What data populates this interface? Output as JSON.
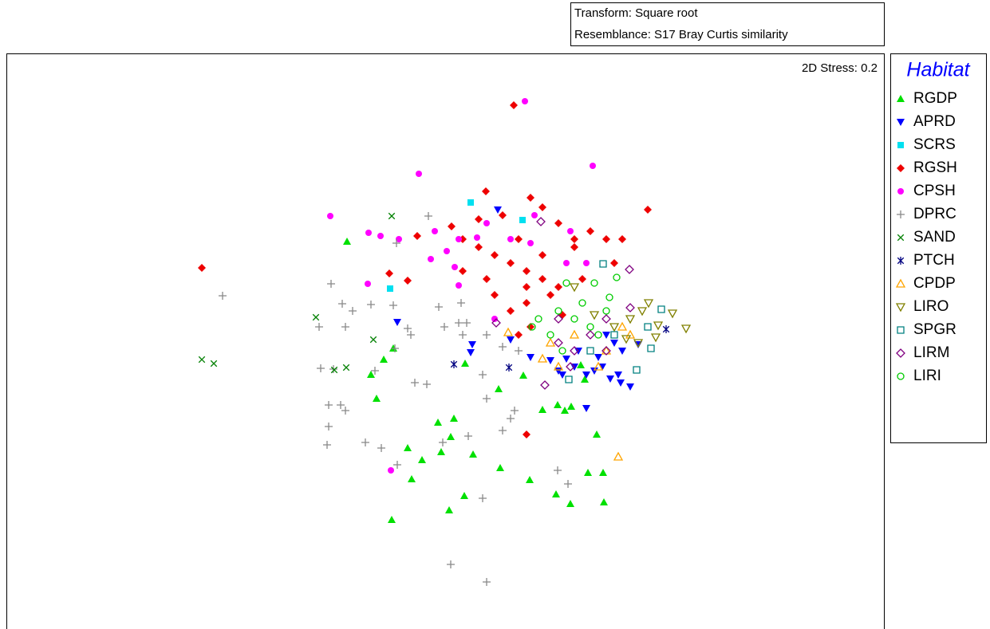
{
  "chart_data": {
    "type": "scatter",
    "header": [
      "Transform: Square root",
      "Resemblance: S17 Bray Curtis similarity"
    ],
    "annotation": "2D Stress: 0.2",
    "legend_title": "Habitat",
    "xlim": [
      0,
      110
    ],
    "ylim": [
      0,
      72.2
    ],
    "series": [
      {
        "name": "RGDP",
        "color": "#00e000",
        "marker": "triangle-up",
        "x": [
          42.7,
          47.3,
          48.5,
          45.7,
          46.4,
          54.1,
          56.1,
          55.7,
          50.3,
          52.1,
          54.5,
          58.5,
          61.9,
          50.8,
          57.4,
          55.5,
          48.3,
          65.6,
          70.7,
          68.9,
          72.9,
          74.8,
          74.9,
          74,
          67.2,
          69.1,
          70.8,
          70,
          61.7,
          57.5,
          64.8,
          72.5,
          72
        ],
        "y": [
          48.6,
          33.8,
          35.2,
          31.9,
          28.9,
          25.9,
          26.4,
          24.1,
          22.7,
          21.2,
          22.2,
          21.9,
          20.2,
          18.8,
          16.7,
          14.9,
          13.7,
          18.7,
          15.7,
          16.9,
          19.6,
          19.6,
          15.9,
          24.4,
          27.5,
          28.1,
          27.9,
          27.4,
          30.1,
          33.3,
          31.8,
          31.3,
          33.1
        ]
      },
      {
        "name": "APRD",
        "color": "#0000ff",
        "marker": "triangle-down",
        "x": [
          61.6,
          49,
          58.4,
          58.2,
          63.2,
          65.7,
          68.2,
          69.2,
          70.2,
          71.2,
          72.7,
          73.7,
          74.7,
          75.7,
          76.7,
          78.2,
          77,
          72.7,
          75.2,
          77.2,
          79.2,
          71.7,
          76.2,
          69.7,
          74.2
        ],
        "y": [
          52.6,
          38.5,
          35.7,
          34.7,
          36.3,
          34.1,
          33.7,
          32.4,
          33.9,
          32.9,
          31.9,
          32.4,
          32.9,
          31.4,
          31.9,
          30.4,
          30.9,
          27.7,
          36.9,
          34.9,
          35.7,
          34.9,
          35.9,
          31.9,
          34.1
        ]
      },
      {
        "name": "SCRS",
        "color": "#00e0f0",
        "marker": "square",
        "x": [
          58.2,
          64.7,
          48.1
        ],
        "y": [
          53.5,
          51.3,
          42.7
        ]
      },
      {
        "name": "RGSH",
        "color": "#ee0000",
        "marker": "diamond",
        "x": [
          24.5,
          63.6,
          60.1,
          51.5,
          55.8,
          57.2,
          59.2,
          62.2,
          65.7,
          67.2,
          69.2,
          71.2,
          73.2,
          75.2,
          77.2,
          80.4,
          48,
          50.3,
          57.2,
          61.2,
          63.2,
          65.2,
          67.2,
          69.2,
          61.2,
          63.2,
          65.2,
          68.2,
          69.7,
          65.7,
          64.2,
          71.2,
          72.2,
          76.2,
          64.2,
          59.2,
          65.2,
          60.2,
          67.2,
          65.2
        ],
        "y": [
          45.3,
          65.7,
          54.9,
          49.3,
          50.5,
          48.9,
          51.4,
          51.9,
          54.1,
          52.9,
          50.9,
          48.9,
          49.9,
          48.9,
          48.9,
          52.6,
          44.6,
          43.7,
          44.9,
          46.9,
          45.9,
          44.9,
          43.9,
          42.9,
          41.9,
          39.9,
          40.9,
          41.9,
          39.4,
          37.9,
          36.9,
          47.9,
          43.9,
          45.9,
          48.9,
          47.9,
          24.4,
          43.9,
          46.9,
          42.9
        ]
      },
      {
        "name": "CPSH",
        "color": "#ff00ff",
        "marker": "circle",
        "x": [
          65,
          73.5,
          51.7,
          40.6,
          45.4,
          46.9,
          49.2,
          53.7,
          55.2,
          56.7,
          53.2,
          56.2,
          56.7,
          45.3,
          48.2,
          63.2,
          65.7,
          70.7,
          72.7,
          70.2,
          61.2,
          66.2,
          59,
          60.2
        ],
        "y": [
          66.2,
          58.1,
          57.1,
          51.8,
          49.7,
          49.3,
          48.9,
          49.9,
          47.4,
          48.9,
          46.4,
          45.4,
          43.1,
          43.3,
          19.9,
          48.9,
          48.4,
          49.9,
          45.9,
          45.9,
          38.9,
          51.9,
          49.1,
          50.9
        ]
      },
      {
        "name": "DPRC",
        "color": "#888888",
        "marker": "plus",
        "x": [
          27.1,
          40.7,
          42.1,
          43.4,
          39.2,
          42.5,
          45.7,
          48.5,
          48.9,
          52.9,
          50.3,
          50.7,
          54.2,
          54.9,
          57,
          56.7,
          48.7,
          46.2,
          39.4,
          41,
          40.4,
          41.9,
          42.5,
          40.4,
          40.2,
          45,
          47,
          49,
          51.2,
          52.7,
          54.7,
          57.9,
          57.7,
          60.2,
          62.2,
          64.2,
          59.7,
          60.2,
          63.7,
          62.2,
          63.2,
          55.7,
          60.2,
          59.7,
          69.1,
          70.4,
          57.2
        ],
        "y": [
          41.8,
          43.3,
          40.8,
          39.9,
          37.9,
          37.9,
          40.7,
          40.6,
          48.4,
          51.8,
          37.7,
          36.9,
          40.4,
          37.9,
          40.9,
          38.4,
          35.2,
          32.4,
          32.7,
          32.6,
          28.1,
          28.1,
          27.4,
          25.4,
          23.1,
          23.4,
          22.7,
          20.6,
          30.9,
          30.7,
          23.4,
          24.2,
          38.4,
          36.9,
          35.4,
          34.9,
          31.9,
          28.9,
          27.4,
          24.9,
          26.4,
          8.1,
          5.9,
          16.4,
          19.9,
          18.2,
          36.9
        ]
      },
      {
        "name": "SAND",
        "color": "#008000",
        "marker": "cross",
        "x": [
          48.3,
          38.8,
          46,
          24.5,
          26,
          41.1,
          42.6
        ],
        "y": [
          51.8,
          39.1,
          36.3,
          33.8,
          33.3,
          32.5,
          32.8
        ]
      },
      {
        "name": "PTCH",
        "color": "#000080",
        "marker": "asterisk",
        "x": [
          56.1,
          63,
          82.7
        ],
        "y": [
          33.2,
          32.8,
          37.6
        ]
      },
      {
        "name": "CPDP",
        "color": "#ffa500",
        "marker": "triangle-up-open",
        "x": [
          62.9,
          76.7,
          68.2,
          71.2,
          75.2,
          77.2,
          69.2,
          74.2,
          78.2,
          67.2
        ],
        "y": [
          37.2,
          21.6,
          35.9,
          36.9,
          34.9,
          37.9,
          32.9,
          32.9,
          36.9,
          33.9
        ]
      },
      {
        "name": "LIRO",
        "color": "#808000",
        "marker": "triangle-down-open",
        "x": [
          85.2,
          83.5,
          80.5,
          81.7,
          81.4,
          79.7,
          78.2,
          76.2,
          73.7,
          71.2,
          77.7,
          79.2
        ],
        "y": [
          37.7,
          39.6,
          40.9,
          38.1,
          36.6,
          39.9,
          38.9,
          37.9,
          39.4,
          42.9,
          36.4,
          35.9
        ]
      },
      {
        "name": "SPGR",
        "color": "#008080",
        "marker": "square-open",
        "x": [
          74.8,
          82.1,
          80.4,
          80.8,
          79,
          70.5,
          73.2,
          76.2
        ],
        "y": [
          45.8,
          40.1,
          37.9,
          35.2,
          32.5,
          31.3,
          34.9,
          36.9
        ]
      },
      {
        "name": "LIRM",
        "color": "#800080",
        "marker": "diamond-open",
        "x": [
          67,
          78.1,
          67.5,
          61.4,
          78.2,
          69.2,
          71.2,
          73.2,
          75.2,
          69.2,
          75.2,
          70.7
        ],
        "y": [
          51.1,
          45.1,
          30.6,
          38.4,
          40.3,
          35.9,
          34.9,
          36.9,
          38.9,
          38.9,
          34.9,
          32.9
        ]
      },
      {
        "name": "LIRI",
        "color": "#00cc00",
        "marker": "circle-open",
        "x": [
          76.5,
          75.6,
          73.7,
          70.2,
          72.2,
          66.7,
          65.9,
          69.2,
          71.2,
          73.2,
          75.2,
          68.2,
          69.7,
          74.2
        ],
        "y": [
          44.1,
          41.6,
          43.4,
          43.4,
          40.9,
          38.9,
          37.9,
          39.9,
          38.9,
          37.9,
          39.9,
          36.9,
          34.9,
          36.9
        ]
      }
    ]
  }
}
